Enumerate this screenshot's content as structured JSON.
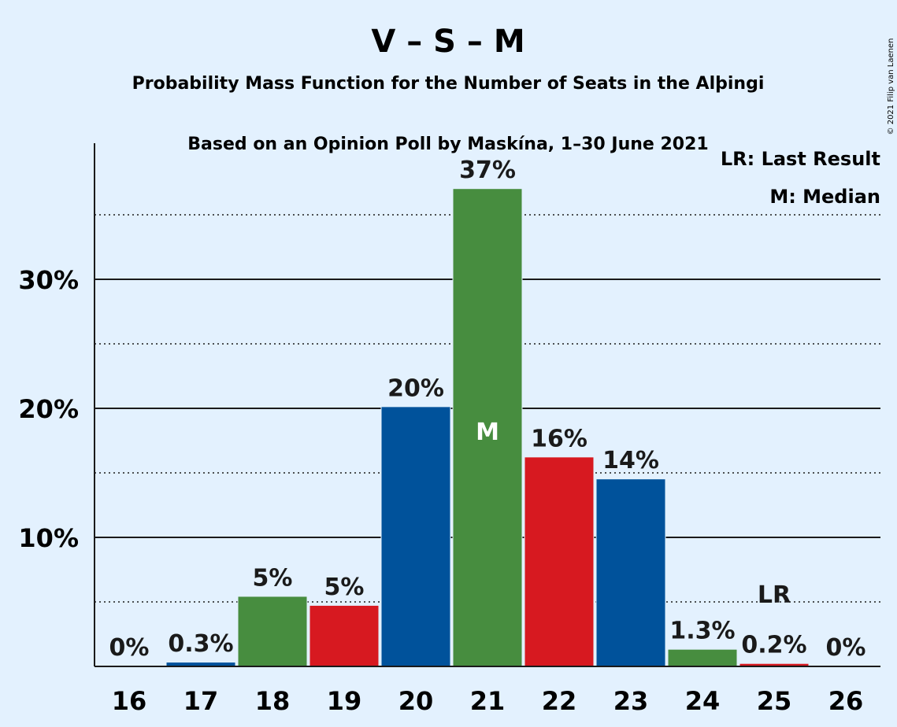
{
  "chart_data": {
    "type": "bar",
    "title": "V – S – M",
    "subtitle_1": "Probability Mass Function for the Number of Seats in the Alþingi",
    "subtitle_2": "Based on an Opinion Poll by Maskína, 1–30 June 2021",
    "credit": "© 2021 Filip van Laenen",
    "categories": [
      "16",
      "17",
      "18",
      "19",
      "20",
      "21",
      "22",
      "23",
      "24",
      "25",
      "26"
    ],
    "values": [
      0,
      0.3,
      5.4,
      4.7,
      20.1,
      37.0,
      16.2,
      14.5,
      1.3,
      0.2,
      0
    ],
    "labels": [
      "0%",
      "0.3%",
      "5%",
      "5%",
      "20%",
      "37%",
      "16%",
      "14%",
      "1.3%",
      "0.2%",
      "0%"
    ],
    "bar_colors": [
      "#00529b",
      "#00529b",
      "#478d3f",
      "#d71920",
      "#00529b",
      "#478d3f",
      "#d71920",
      "#00529b",
      "#478d3f",
      "#d71920",
      "#00529b"
    ],
    "ylim": [
      0,
      40
    ],
    "y_ticks": [
      {
        "value": 10,
        "label": "10%"
      },
      {
        "value": 20,
        "label": "20%"
      },
      {
        "value": 30,
        "label": "30%"
      }
    ],
    "dotted_gridlines": [
      5,
      15,
      25,
      35
    ],
    "median_category": "21",
    "median_marker": "M",
    "last_result_category": "25",
    "last_result_marker": "LR",
    "legend": [
      "LR: Last Result",
      "M: Median"
    ],
    "legend_placement": "top-right",
    "background": "#e3f1fe"
  }
}
